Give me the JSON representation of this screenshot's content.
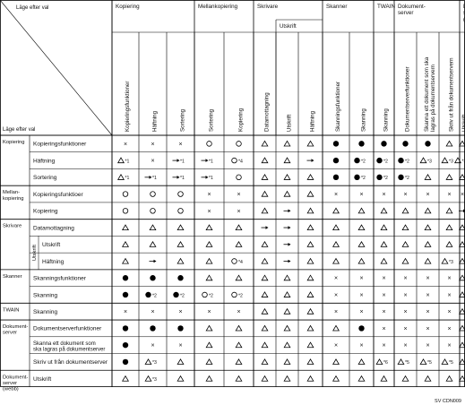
{
  "top_corner_label": "Läge efter val",
  "bottom_corner_label": "Läge efter val",
  "groups": [
    {
      "name": "Kopiering",
      "cols": [
        "Kopieringsfunktioner",
        "Häftning",
        "Sortering"
      ]
    },
    {
      "name": "Mellankopiering",
      "cols": [
        "Sortering",
        "Kopiering"
      ]
    },
    {
      "name": "Skrivare",
      "sub": "Utskrift",
      "cols": [
        "Datamottagning",
        "Utskrift",
        "Häftning"
      ]
    },
    {
      "name": "Skanner",
      "cols": [
        "Skanningsfunktioner",
        "Skanning"
      ]
    },
    {
      "name": "TWAIN",
      "cols": [
        "Skanning"
      ]
    },
    {
      "name": "Dokument-\nserver",
      "cols": [
        "Dokumentserverfunktioner",
        "Skanna ett dokument som ska\nlagras på dokumentservern",
        "Skriv ut från dokumentservern"
      ]
    },
    {
      "name": "Dokument-\nserver\n(webb)",
      "cols": [
        "Utskrift"
      ]
    }
  ],
  "rows": [
    {
      "group": "Kopiering",
      "label": "Kopieringsfunktioner",
      "cells": [
        "x",
        "x",
        "x",
        "o",
        "o",
        "t",
        "t",
        "t",
        "d",
        "d",
        "d",
        "d",
        "d",
        "t",
        "t"
      ]
    },
    {
      "group": "",
      "label": "Häftning",
      "cells": [
        "t*1",
        "x",
        "→*1",
        "→*1",
        "o*4",
        "t",
        "t",
        "→",
        "d",
        "d*2",
        "d*2",
        "d*2",
        "t*3",
        "t*3",
        "t*3"
      ]
    },
    {
      "group": "",
      "label": "Sortering",
      "cells": [
        "t*1",
        "→*1",
        "→*1",
        "→*1",
        "o",
        "t",
        "t",
        "t",
        "d",
        "d*2",
        "d*2",
        "d*2",
        "t",
        "t",
        "t"
      ]
    },
    {
      "group": "Mellan-\nkopiering",
      "label": "Kopieringsfunktioer",
      "cells": [
        "o",
        "o",
        "o",
        "x",
        "x",
        "t",
        "t",
        "t",
        "x",
        "x",
        "x",
        "x",
        "x",
        "x",
        "x"
      ]
    },
    {
      "group": "",
      "label": "Kopiering",
      "cells": [
        "o",
        "o",
        "o",
        "x",
        "x",
        "t",
        "→",
        "t",
        "t",
        "t",
        "t",
        "t",
        "t",
        "t",
        "→"
      ]
    },
    {
      "group": "Skrivare",
      "label": "Datamottagning",
      "cells": [
        "t",
        "t",
        "t",
        "t",
        "t",
        "→",
        "→",
        "t",
        "t",
        "t",
        "t",
        "t",
        "t",
        "t",
        "t"
      ]
    },
    {
      "group": "",
      "sub": "Utskrift",
      "label": "Utskrift",
      "cells": [
        "t",
        "t",
        "t",
        "t",
        "t",
        "t",
        "→",
        "t",
        "t",
        "t",
        "t",
        "t",
        "t",
        "t",
        "t"
      ]
    },
    {
      "group": "",
      "label": "Häftning",
      "cells": [
        "t",
        "→",
        "t",
        "t",
        "o*4",
        "t",
        "→",
        "t",
        "t",
        "t",
        "t",
        "t",
        "t",
        "t*3",
        "t"
      ]
    },
    {
      "group": "Skanner",
      "label": "Skanningsfunktioner",
      "cells": [
        "d",
        "d",
        "d",
        "t",
        "t",
        "t",
        "t",
        "t",
        "x",
        "x",
        "x",
        "x",
        "x",
        "x",
        "t"
      ]
    },
    {
      "group": "",
      "label": "Skanning",
      "cells": [
        "d",
        "d*2",
        "d*2",
        "o*2",
        "o*2",
        "t",
        "t",
        "t",
        "x",
        "x",
        "x",
        "x",
        "x",
        "x",
        "t"
      ]
    },
    {
      "group": "TWAIN",
      "label": "Skanning",
      "cells": [
        "x",
        "x",
        "x",
        "x",
        "x",
        "t",
        "t",
        "t",
        "x",
        "x",
        "x",
        "x",
        "x",
        "x",
        "t"
      ]
    },
    {
      "group": "Dokument-\nserver",
      "label": "Dokumentserverfunktioner",
      "cells": [
        "d",
        "d",
        "d",
        "t",
        "t",
        "t",
        "t",
        "t",
        "t",
        "d",
        "x",
        "x",
        "x",
        "x",
        "t"
      ]
    },
    {
      "group": "",
      "label": "Skanna ett dokument som\nska lagras på dokumentserver",
      "cells": [
        "d",
        "x",
        "x",
        "t",
        "t",
        "t",
        "t",
        "t",
        "x",
        "x",
        "x",
        "x",
        "x",
        "x",
        "t"
      ]
    },
    {
      "group": "",
      "label": "Skriv ut från dokumentserver",
      "cells": [
        "d",
        "t*3",
        "t",
        "t",
        "t",
        "t",
        "t",
        "t",
        "t",
        "t",
        "t*6",
        "t*5",
        "t*5",
        "t*5",
        "t"
      ]
    },
    {
      "group": "Dokument-\nserver\n(webb)",
      "label": "Utskrift",
      "cells": [
        "t",
        "t*3",
        "t",
        "t",
        "t",
        "t",
        "t",
        "t",
        "t",
        "t",
        "t",
        "t",
        "t",
        "t",
        "t"
      ]
    }
  ],
  "figure_code": "SV CDN009"
}
